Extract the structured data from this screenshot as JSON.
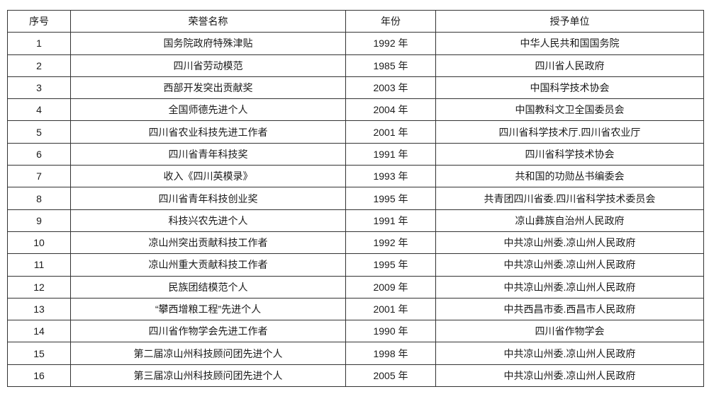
{
  "table": {
    "headers": [
      "序号",
      "荣誉名称",
      "年份",
      "授予单位"
    ],
    "rows": [
      [
        "1",
        "国务院政府特殊津贴",
        "1992 年",
        "中华人民共和国国务院"
      ],
      [
        "2",
        "四川省劳动模范",
        "1985 年",
        "四川省人民政府"
      ],
      [
        "3",
        "西部开发突出贡献奖",
        "2003 年",
        "中国科学技术协会"
      ],
      [
        "4",
        "全国师德先进个人",
        "2004 年",
        "中国教科文卫全国委员会"
      ],
      [
        "5",
        "四川省农业科技先进工作者",
        "2001 年",
        "四川省科学技术厅.四川省农业厅"
      ],
      [
        "6",
        "四川省青年科技奖",
        "1991 年",
        "四川省科学技术协会"
      ],
      [
        "7",
        "收入《四川英模录》",
        "1993 年",
        "共和国的功勋丛书编委会"
      ],
      [
        "8",
        "四川省青年科技创业奖",
        "1995 年",
        "共青团四川省委.四川省科学技术委员会"
      ],
      [
        "9",
        "科技兴农先进个人",
        "1991 年",
        "凉山彝族自治州人民政府"
      ],
      [
        "10",
        "凉山州突出贡献科技工作者",
        "1992 年",
        "中共凉山州委.凉山州人民政府"
      ],
      [
        "11",
        "凉山州重大贡献科技工作者",
        "1995 年",
        "中共凉山州委.凉山州人民政府"
      ],
      [
        "12",
        "民族团结模范个人",
        "2009 年",
        "中共凉山州委.凉山州人民政府"
      ],
      [
        "13",
        "“攀西增粮工程”先进个人",
        "2001 年",
        "中共西昌市委.西昌市人民政府"
      ],
      [
        "14",
        "四川省作物学会先进工作者",
        "1990 年",
        "四川省作物学会"
      ],
      [
        "15",
        "第二届凉山州科技顾问团先进个人",
        "1998 年",
        "中共凉山州委.凉山州人民政府"
      ],
      [
        "16",
        "第三届凉山州科技顾问团先进个人",
        "2005 年",
        "中共凉山州委.凉山州人民政府"
      ]
    ]
  }
}
